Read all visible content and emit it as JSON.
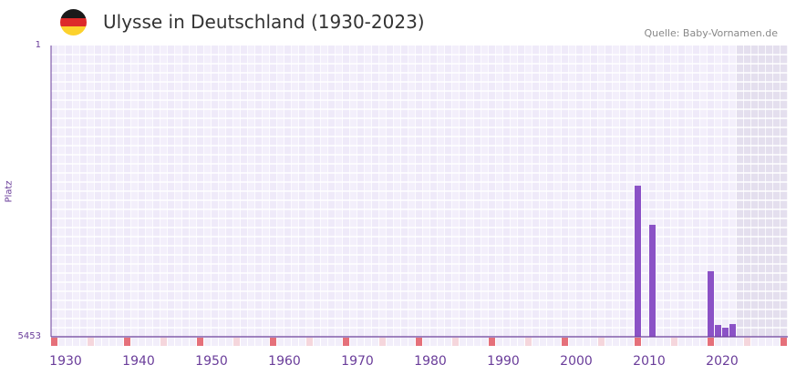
{
  "header": {
    "title": "Ulysse in Deutschland (1930-2023)",
    "source": "Quelle: Baby-Vornamen.de",
    "flag_colors": [
      "#1a1a1a",
      "#dd2a2a",
      "#fcd22d"
    ]
  },
  "colors": {
    "bar": "#8b52c6",
    "axis": "#6a3d9a",
    "decade_mark": "#e5707a",
    "half_mark": "#f5d6dc",
    "grid_bg": "#efeaf9",
    "future_bg": "#e4dfee"
  },
  "chart_data": {
    "type": "bar",
    "title": "Ulysse in Deutschland (1930-2023)",
    "xlabel": "",
    "ylabel": "Platz",
    "xlim": [
      1930,
      2030
    ],
    "ylim": [
      5453,
      1
    ],
    "ytick_labels": [
      "1",
      "5453"
    ],
    "xtick_labels": [
      "1930",
      "1940",
      "1950",
      "1960",
      "1970",
      "1980",
      "1990",
      "2000",
      "2010",
      "2020"
    ],
    "future_from": 2024,
    "x": [
      2010,
      2012,
      2020,
      2021,
      2022,
      2023
    ],
    "values": [
      2625,
      3357,
      4226,
      5232,
      5283,
      5215
    ]
  }
}
